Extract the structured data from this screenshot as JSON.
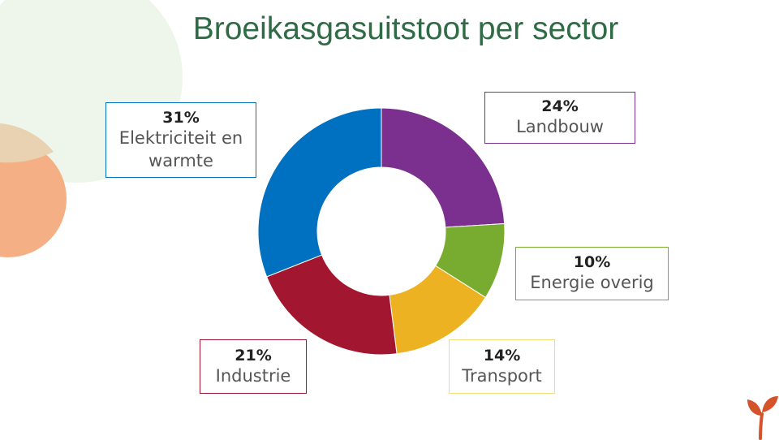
{
  "title": "Broeikasgasuitstoot per sector",
  "colors": {
    "title": "#2f6b45",
    "deco_green": "#eef5ea",
    "deco_peach": "#f4b084",
    "deco_beige": "#e9d2b1",
    "logo": "#d4532a"
  },
  "icons": {
    "logo": "sprout-icon"
  },
  "chart_data": {
    "type": "pie",
    "variant": "donut",
    "categories": [
      "Landbouw",
      "Energie overig",
      "Transport",
      "Industrie",
      "Elektriciteit en warmte"
    ],
    "values": [
      24,
      10,
      14,
      21,
      31
    ],
    "unit": "%",
    "colors": [
      "#7b2f8e",
      "#78ac30",
      "#ecb222",
      "#a3162f",
      "#0070c0"
    ],
    "labels": [
      {
        "pct": "24%",
        "name": "Landbouw"
      },
      {
        "pct": "10%",
        "name": "Energie overig"
      },
      {
        "pct": "14%",
        "name": "Transport"
      },
      {
        "pct": "21%",
        "name": "Industrie"
      },
      {
        "pct": "31%",
        "name": "Elektriciteit en warmte"
      }
    ],
    "legend": "none"
  }
}
